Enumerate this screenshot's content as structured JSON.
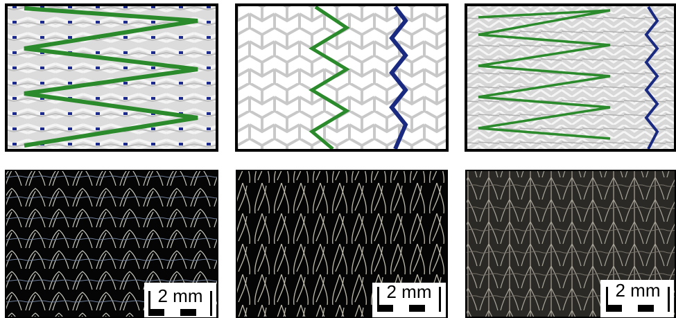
{
  "photos": [
    {
      "scale_bar": "2 mm"
    },
    {
      "scale_bar": "2 mm"
    },
    {
      "scale_bar": "2 mm"
    }
  ]
}
